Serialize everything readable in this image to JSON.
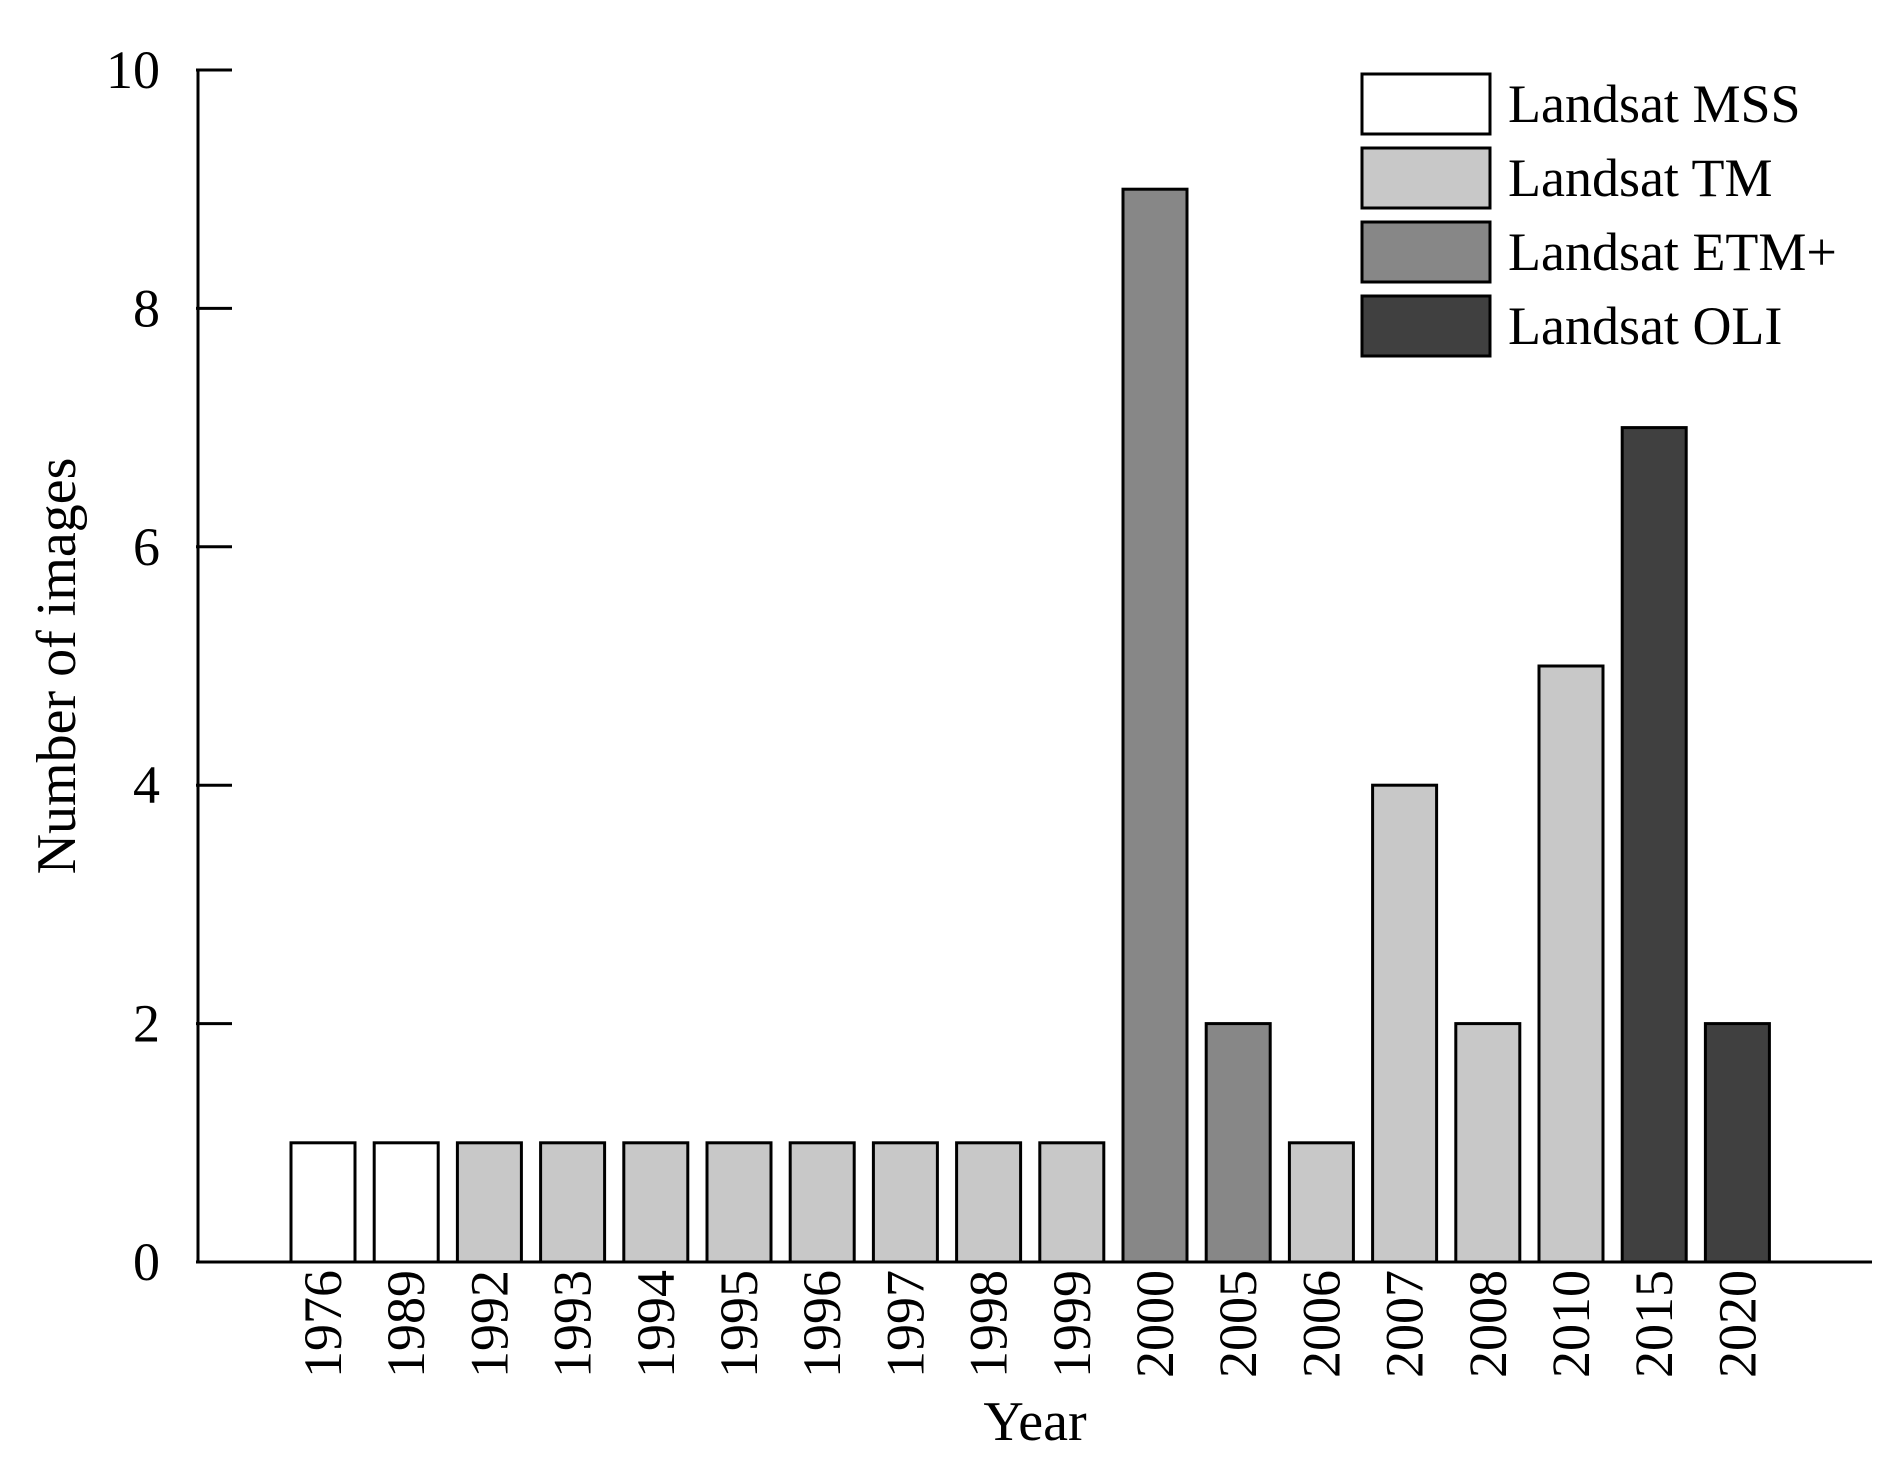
{
  "chart_data": {
    "type": "bar",
    "title": "",
    "xlabel": "Year",
    "ylabel": "Number of images",
    "ylim": [
      0,
      10
    ],
    "yticks": [
      0,
      2,
      4,
      6,
      8,
      10
    ],
    "grid": false,
    "legend_position": "top-right",
    "categories": [
      "1976",
      "1989",
      "1992",
      "1993",
      "1994",
      "1995",
      "1996",
      "1997",
      "1998",
      "1999",
      "2000",
      "2005",
      "2006",
      "2007",
      "2008",
      "2010",
      "2015",
      "2020"
    ],
    "values": [
      1,
      1,
      1,
      1,
      1,
      1,
      1,
      1,
      1,
      1,
      9,
      2,
      1,
      4,
      2,
      5,
      7,
      2
    ],
    "sensors": [
      "Landsat MSS",
      "Landsat MSS",
      "Landsat TM",
      "Landsat TM",
      "Landsat TM",
      "Landsat TM",
      "Landsat TM",
      "Landsat TM",
      "Landsat TM",
      "Landsat TM",
      "Landsat ETM+",
      "Landsat ETM+",
      "Landsat TM",
      "Landsat TM",
      "Landsat TM",
      "Landsat TM",
      "Landsat OLI",
      "Landsat OLI"
    ],
    "legend": [
      {
        "name": "Landsat MSS",
        "color": "#ffffff"
      },
      {
        "name": "Landsat TM",
        "color": "#c8c8c8"
      },
      {
        "name": "Landsat ETM+",
        "color": "#878787"
      },
      {
        "name": "Landsat OLI",
        "color": "#404040"
      }
    ]
  }
}
